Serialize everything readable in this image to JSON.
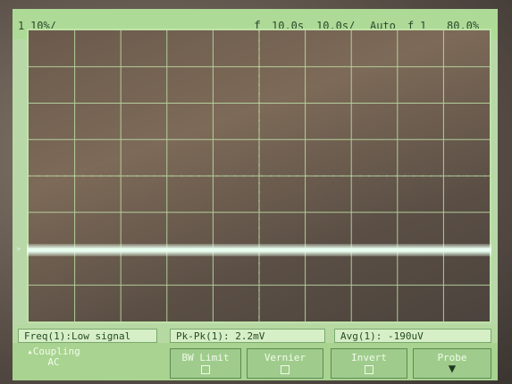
{
  "header": {
    "channel_indicator": "1",
    "channel_scale": "10%/",
    "trigger_symbol": "ƒ",
    "time_scale": "10.0s",
    "position_scale": "10.0s/",
    "trigger_mode": "Auto",
    "trigger_source": "1",
    "trigger_level": "80.0%"
  },
  "display": {
    "trace_level": 0.75
  },
  "measurements": {
    "freq": "Freq(1):Low signal",
    "pkpk": "Pk-Pk(1): 2.2mV",
    "avg": "Avg(1): -190uV"
  },
  "softkeys": {
    "coupling_label": "Coupling",
    "coupling_value": "AC",
    "bw_limit": "BW Limit",
    "vernier": "Vernier",
    "invert": "Invert",
    "probe": "Probe"
  },
  "colors": {
    "screen": "#b8d8a8",
    "trace": "#e9fff0",
    "grid_line": "#bfe3a8"
  }
}
